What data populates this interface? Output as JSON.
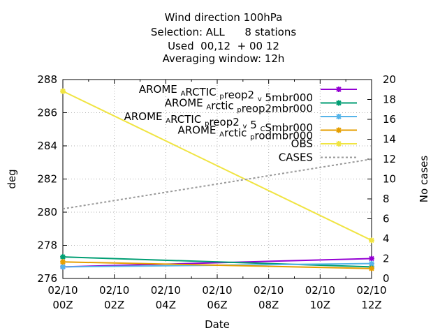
{
  "title": {
    "line1": "Wind direction 100hPa",
    "line2": "Selection: ALL      8 stations",
    "line3": "Used  00,12  + 00 12",
    "line4": "Averaging window: 12h"
  },
  "chart_data": {
    "type": "line",
    "xlabel": "Date",
    "ylabel": "deg",
    "y2label": "No cases",
    "ylim": [
      276,
      288
    ],
    "y2lim": [
      0,
      20
    ],
    "yticks": [
      276,
      278,
      280,
      282,
      284,
      286,
      288
    ],
    "y2ticks": [
      0,
      2,
      4,
      6,
      8,
      10,
      12,
      14,
      16,
      18,
      20
    ],
    "xlim": [
      0,
      12
    ],
    "xticks": [
      {
        "x": 0,
        "line1": "02/10",
        "line2": "00Z"
      },
      {
        "x": 2,
        "line1": "02/10",
        "line2": "02Z"
      },
      {
        "x": 4,
        "line1": "02/10",
        "line2": "04Z"
      },
      {
        "x": 6,
        "line1": "02/10",
        "line2": "06Z"
      },
      {
        "x": 8,
        "line1": "02/10",
        "line2": "08Z"
      },
      {
        "x": 10,
        "line1": "02/10",
        "line2": "10Z"
      },
      {
        "x": 12,
        "line1": "02/10",
        "line2": "12Z"
      }
    ],
    "grid": true,
    "legend_position": "top-right",
    "series": [
      {
        "name": "AROME_ARCTIC_preop2_v_5mbr000",
        "legend_parts": [
          [
            "AROME ",
            ""
          ],
          [
            "A",
            "sub"
          ],
          [
            "RCTIC ",
            ""
          ],
          [
            "p",
            "sub"
          ],
          [
            "reop2 ",
            ""
          ],
          [
            "v",
            "sub"
          ],
          [
            " 5mbr000",
            ""
          ]
        ],
        "color": "#9400d3",
        "axis": "y1",
        "marker": true,
        "x": [
          0,
          12
        ],
        "y": [
          276.7,
          277.2
        ]
      },
      {
        "name": "AROME_Arctic_preop2mbr000",
        "legend_parts": [
          [
            "AROME ",
            ""
          ],
          [
            "A",
            "sub"
          ],
          [
            "rctic ",
            ""
          ],
          [
            "p",
            "sub"
          ],
          [
            "reop2mbr000",
            ""
          ]
        ],
        "color": "#009e73",
        "axis": "y1",
        "marker": true,
        "x": [
          0,
          12
        ],
        "y": [
          277.3,
          276.7
        ]
      },
      {
        "name": "AROME_ARCTIC_preop2_v_5_CSmbr000",
        "legend_parts": [
          [
            "AROME ",
            ""
          ],
          [
            "A",
            "sub"
          ],
          [
            "RCTIC ",
            ""
          ],
          [
            "p",
            "sub"
          ],
          [
            "reop2 ",
            ""
          ],
          [
            "v",
            "sub"
          ],
          [
            " 5 ",
            ""
          ],
          [
            "C",
            "sub"
          ],
          [
            "Smbr000",
            ""
          ]
        ],
        "color": "#56b4e9",
        "axis": "y1",
        "marker": true,
        "x": [
          0,
          12
        ],
        "y": [
          276.7,
          276.9
        ]
      },
      {
        "name": "AROME_Arctic_prodmbr000",
        "legend_parts": [
          [
            "AROME ",
            ""
          ],
          [
            "A",
            "sub"
          ],
          [
            "rctic ",
            ""
          ],
          [
            "p",
            "sub"
          ],
          [
            "rodmbr000",
            ""
          ]
        ],
        "color": "#e69f00",
        "axis": "y1",
        "marker": true,
        "x": [
          0,
          12
        ],
        "y": [
          277.0,
          276.6
        ]
      },
      {
        "name": "OBS",
        "legend_parts": [
          [
            "OBS",
            ""
          ]
        ],
        "color": "#f0e442",
        "axis": "y1",
        "marker": true,
        "x": [
          0,
          12
        ],
        "y": [
          287.3,
          278.3
        ]
      },
      {
        "name": "CASES",
        "legend_parts": [
          [
            "CASES",
            ""
          ]
        ],
        "color": "#999999",
        "axis": "y2",
        "marker": false,
        "dashed": true,
        "x": [
          0,
          12
        ],
        "y": [
          7.0,
          12.0
        ]
      }
    ]
  }
}
